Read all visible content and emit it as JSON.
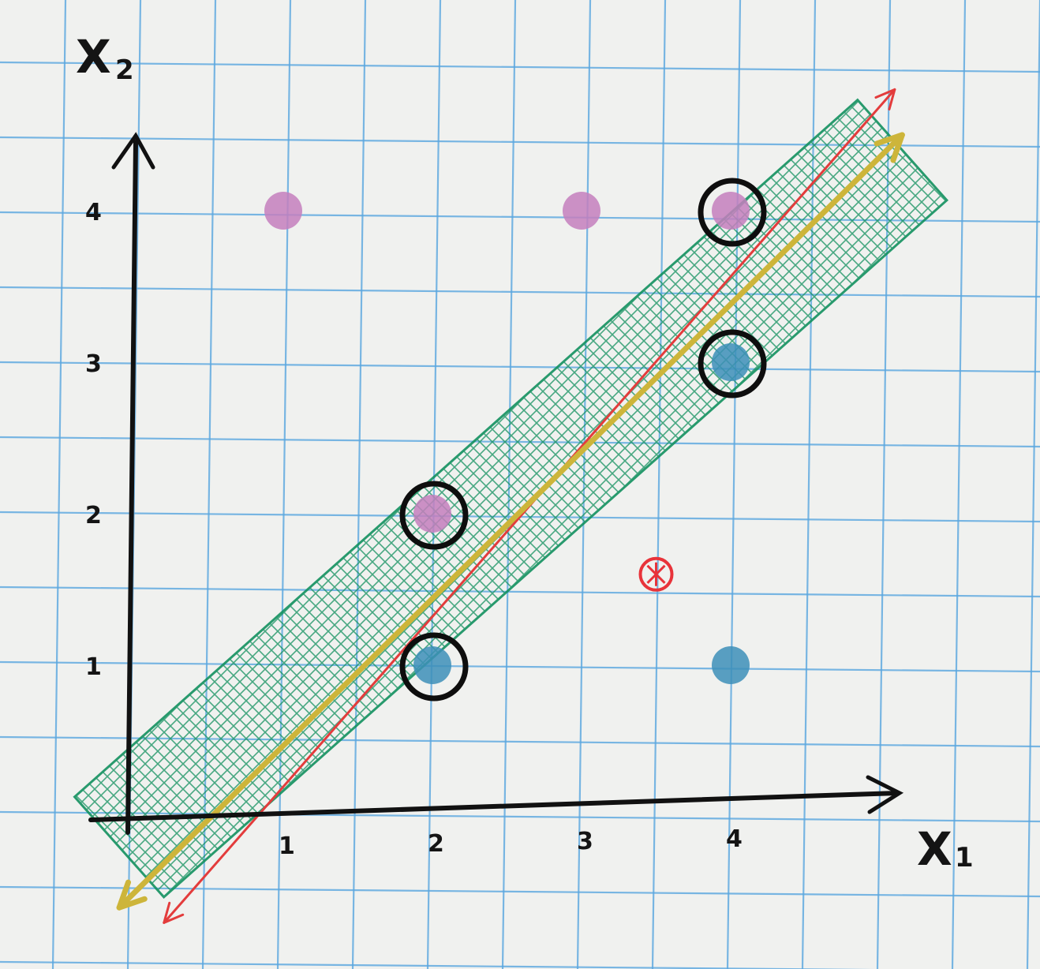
{
  "chart_data": {
    "type": "scatter",
    "title": "",
    "xlabel": "X",
    "xlabel_sub": "1",
    "ylabel": "X",
    "ylabel_sub": "2",
    "x_ticks": [
      "1",
      "2",
      "3",
      "4"
    ],
    "y_ticks": [
      "1",
      "2",
      "3",
      "4"
    ],
    "grid": true,
    "series": [
      {
        "color": "#c47fbd",
        "marker": "dot",
        "points": [
          {
            "x": 1,
            "y": 4
          },
          {
            "x": 3,
            "y": 4
          },
          {
            "x": 4,
            "y": 4
          },
          {
            "x": 2,
            "y": 2
          }
        ]
      },
      {
        "color": "#3d8fb8",
        "marker": "dot",
        "points": [
          {
            "x": 4,
            "y": 3
          },
          {
            "x": 2,
            "y": 1
          },
          {
            "x": 4,
            "y": 1
          }
        ]
      },
      {
        "color": "#e8333a",
        "marker": "crossed-dot",
        "points": [
          {
            "x": 3.5,
            "y": 1.6
          }
        ]
      }
    ],
    "support_vectors": [
      {
        "x": 4,
        "y": 4
      },
      {
        "x": 4,
        "y": 3
      },
      {
        "x": 2,
        "y": 2
      },
      {
        "x": 2,
        "y": 1
      }
    ],
    "lines": [
      {
        "kind": "red-line",
        "color": "#e33c3c",
        "from": {
          "x": 0.2,
          "y": -0.7
        },
        "to": {
          "x": 5.1,
          "y": 4.8
        }
      },
      {
        "kind": "gold-line",
        "color": "#cdb53a",
        "from": {
          "x": -0.1,
          "y": -0.6
        },
        "to": {
          "x": 5.15,
          "y": 4.5
        }
      }
    ],
    "margin_band": {
      "color": "#13915f",
      "from": {
        "x": -0.1,
        "y": -0.2
      },
      "to": {
        "x": 5.15,
        "y": 4.4
      },
      "half_width": 0.5
    }
  }
}
